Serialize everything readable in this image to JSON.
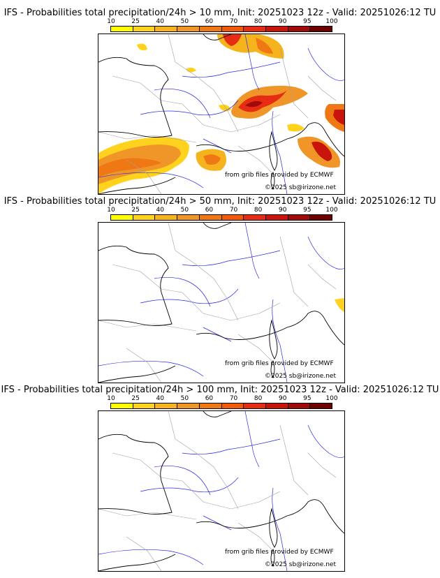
{
  "colorbar": {
    "labels": [
      "10",
      "25",
      "40",
      "50",
      "60",
      "70",
      "80",
      "90",
      "95",
      "100"
    ],
    "colors": [
      "#ffff00",
      "#ffd21e",
      "#f5b41e",
      "#f09628",
      "#f07814",
      "#f05a0a",
      "#e62d14",
      "#c8140a",
      "#a00a0a",
      "#6e0000"
    ]
  },
  "panels": [
    {
      "title": "IFS - Probabilities total precipitation/24h > 10 mm, Init: 20251023 12z - Valid: 20251026:12 TU",
      "source_credit": "from grib files provided by ECMWF",
      "copyright": "©2025 sb@irizone.net"
    },
    {
      "title": "IFS - Probabilities total precipitation/24h > 50 mm, Init: 20251023 12z - Valid: 20251026:12 TU",
      "source_credit": "from grib files provided by ECMWF",
      "copyright": "©2025 sb@irizone.net"
    },
    {
      "title": "IFS - Probabilities total precipitation/24h > 100 mm, Init: 20251023 12z - Valid: 20251026:12 TU",
      "source_credit": "from grib files provided by ECMWF",
      "copyright": "©2025 sb@irizone.net"
    }
  ],
  "map_colors": {
    "coast": "#000000",
    "borders": "#a0a0a0",
    "rivers": "#2a2ae6"
  }
}
